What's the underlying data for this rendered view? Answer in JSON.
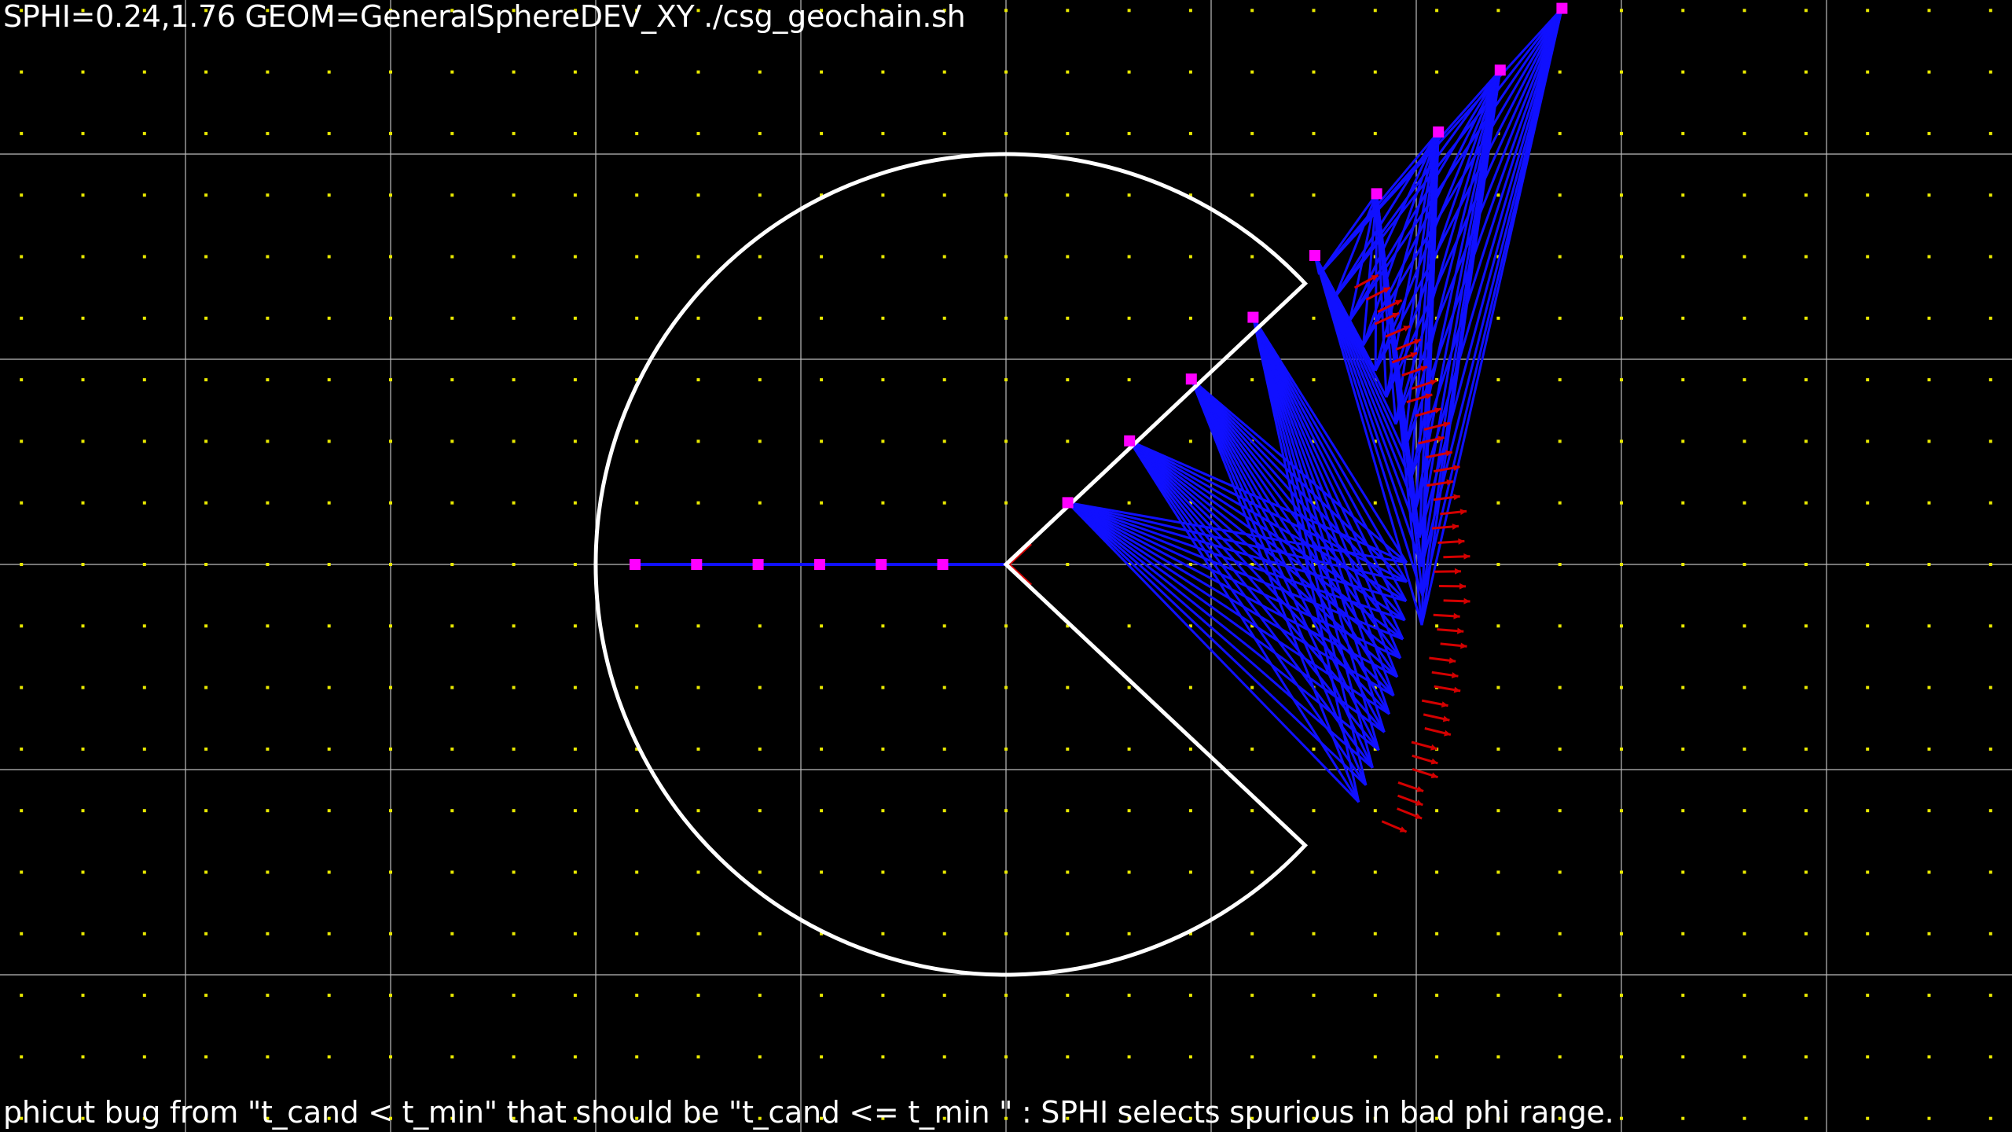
{
  "window": {
    "title_text": "SPHI=0.24,1.76 GEOM=GeneralSphereDEV_XY ./csg_geochain.sh",
    "caption_text": "phicut bug from \"t_cand <  t_min\" that should be \"t_cand <= t_min \" : SPHI selects spurious in bad phi range."
  },
  "colors": {
    "background": "#000000",
    "grid_line": "#bdbdbd",
    "grid_dot": "#e8e800",
    "shape_outline": "#ffffff",
    "ray": "#1010ff",
    "intersection_normal": "#d40000",
    "ray_origin": "#ff00ff",
    "text": "#ffffff"
  },
  "scene": {
    "phi_start": 0.24,
    "phi_delta": 1.76
  }
}
